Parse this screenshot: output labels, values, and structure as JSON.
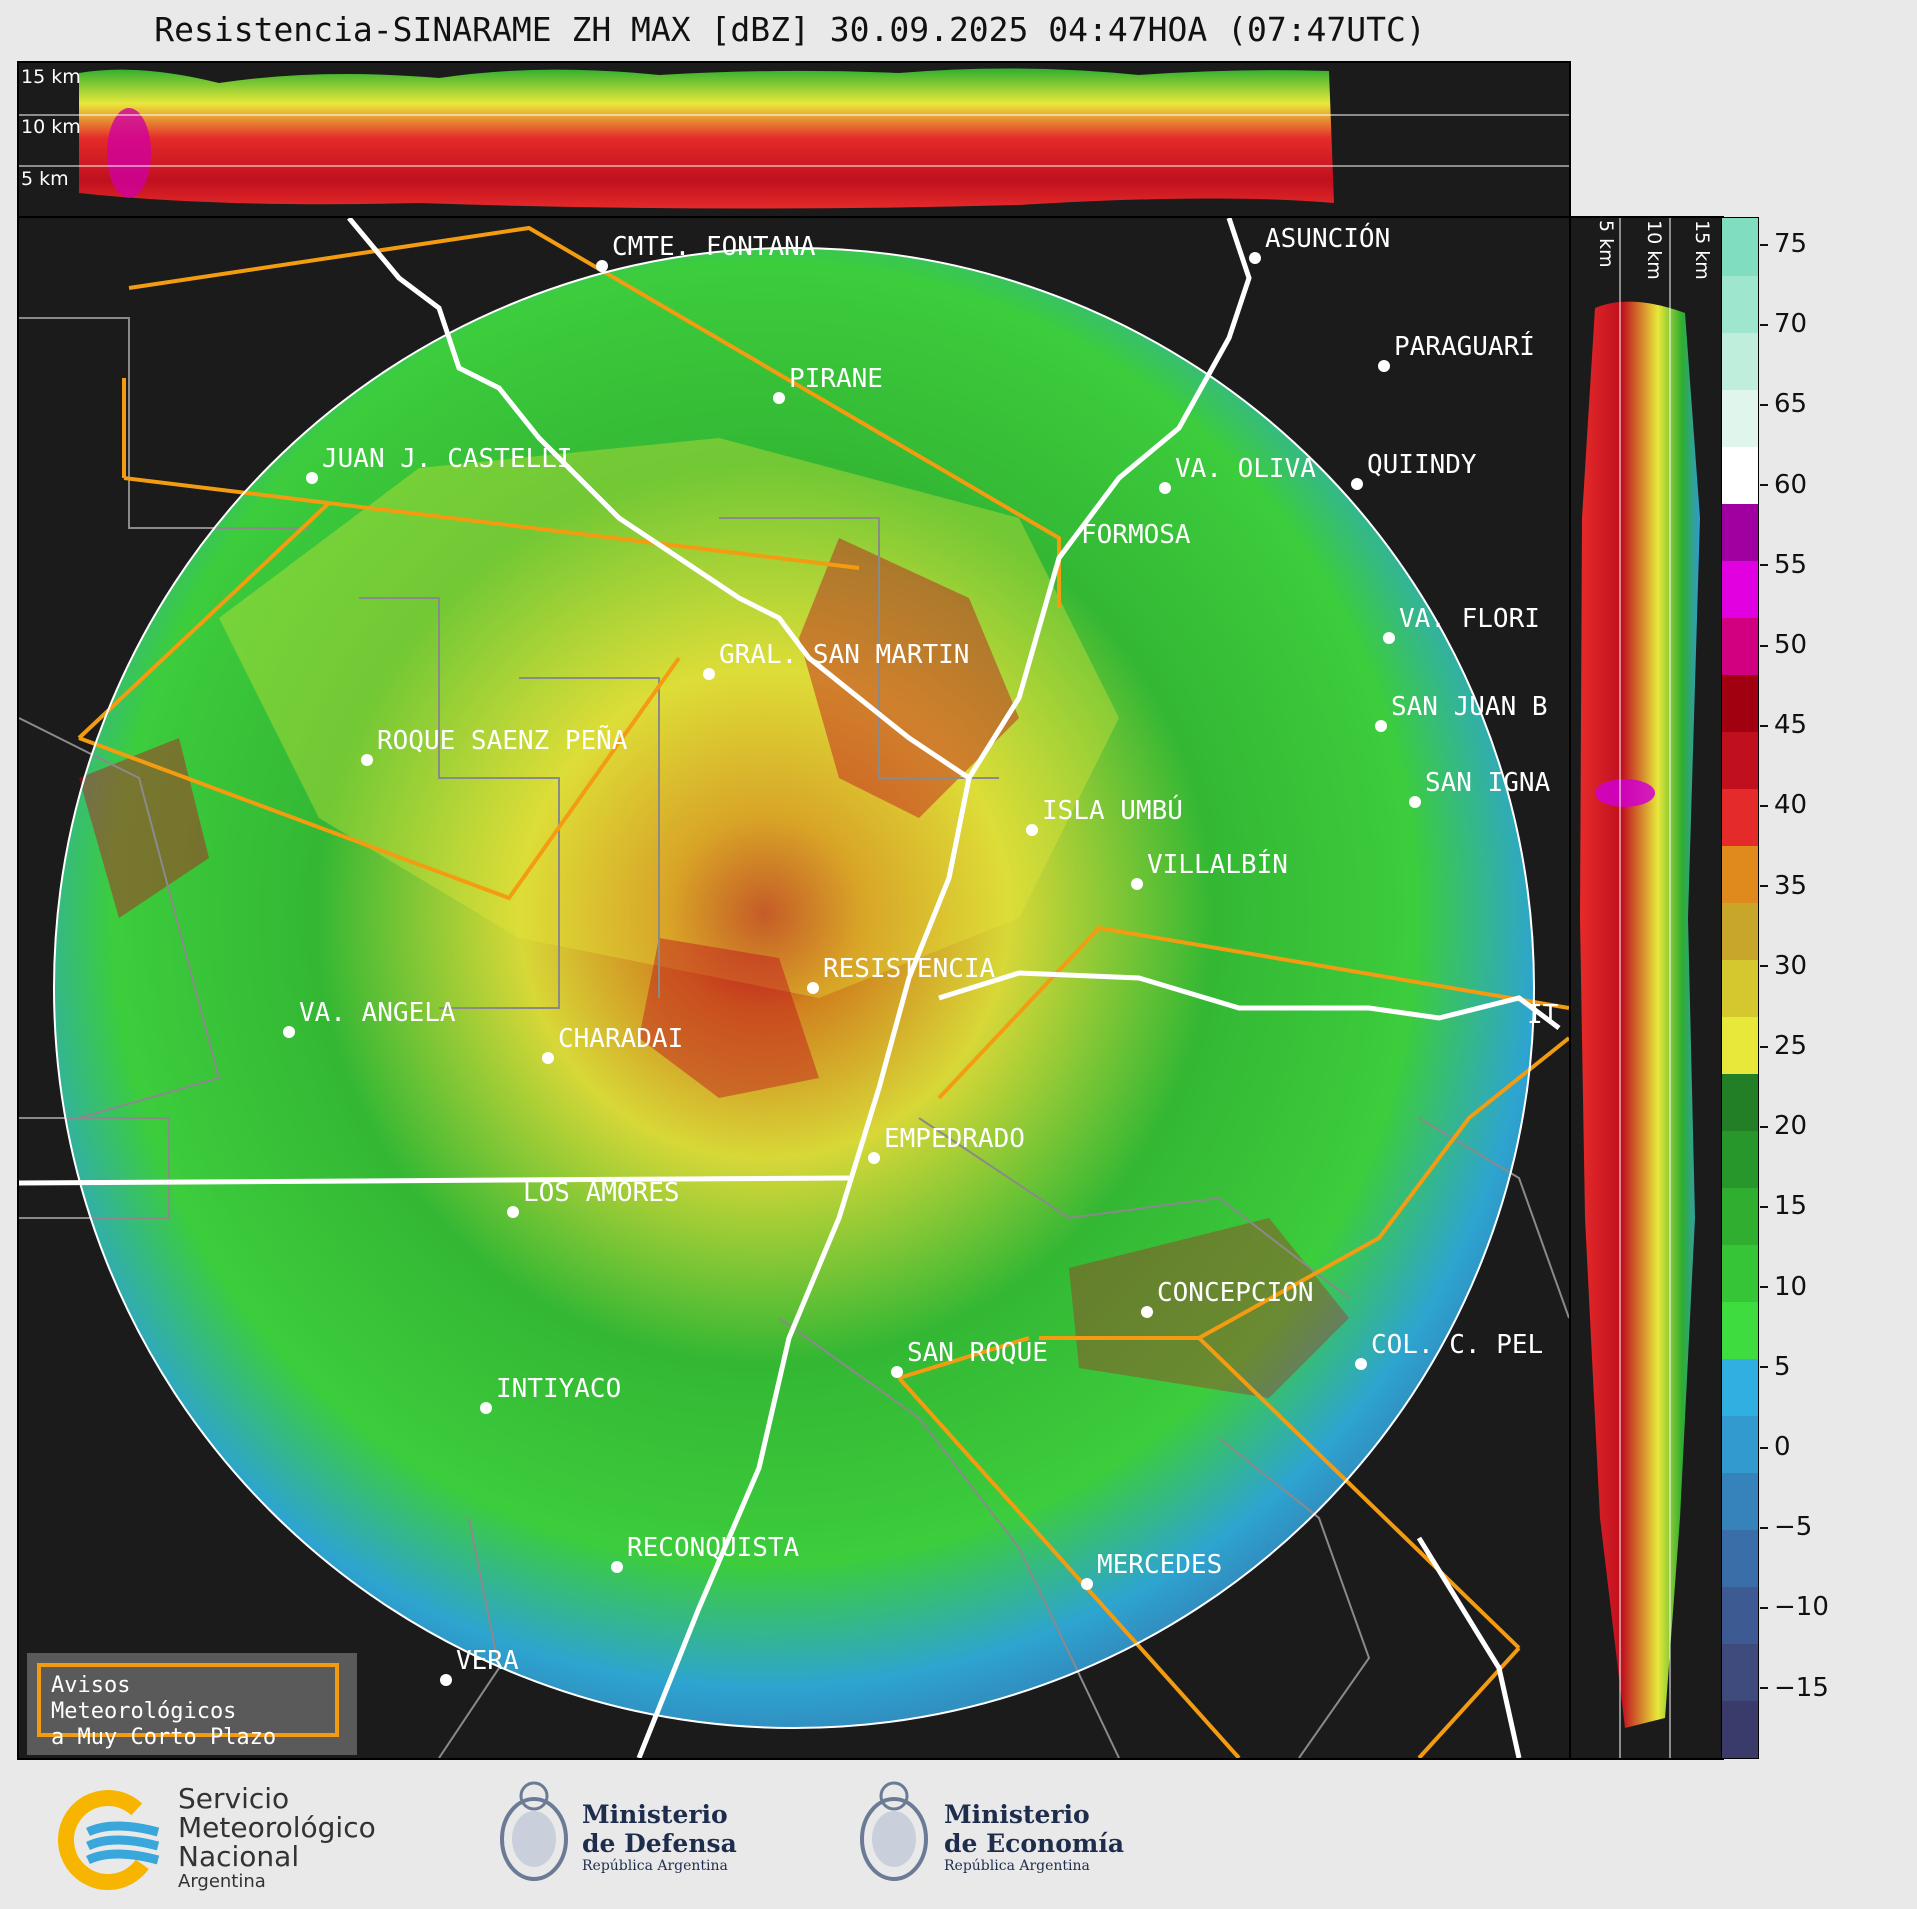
{
  "title": "Resistencia-SINARAME ZH MAX [dBZ] 30.09.2025 04:47HOA (07:47UTC)",
  "top_strip": {
    "labels": [
      "15 km",
      "10 km",
      "5 km"
    ]
  },
  "side_strip": {
    "labels": [
      "5 km",
      "10 km",
      "15 km"
    ]
  },
  "colorbar": {
    "unit": "dBZ",
    "ticks": [
      "75",
      "70",
      "65",
      "60",
      "55",
      "50",
      "45",
      "40",
      "35",
      "30",
      "25",
      "20",
      "15",
      "10",
      "5",
      "0",
      "−5",
      "−10",
      "−15"
    ],
    "colors": [
      "#3b3b6b",
      "#3f4a7d",
      "#3e5a92",
      "#3a6ea8",
      "#3683bc",
      "#329acf",
      "#2fb0e0",
      "#3fdc3f",
      "#36c536",
      "#2fae2f",
      "#28972b",
      "#237f26",
      "#e8e83a",
      "#d4c82e",
      "#c8a62a",
      "#e08a1e",
      "#e52a2a",
      "#c0101e",
      "#a00010",
      "#d00080",
      "#e000e0",
      "#a000a0",
      "#ffffff",
      "#e0f5ec",
      "#bfeedd",
      "#9fe6ce",
      "#80ddbf"
    ]
  },
  "cities": [
    {
      "name": "CMTE. FONTANA"
    },
    {
      "name": "ASUNCIÓN"
    },
    {
      "name": "PARAGUARÍ"
    },
    {
      "name": "PIRANE"
    },
    {
      "name": "JUAN J. CASTELLI"
    },
    {
      "name": "VA. OLIVA"
    },
    {
      "name": "QUIINDY"
    },
    {
      "name": "FORMOSA"
    },
    {
      "name": "VA. FLORI"
    },
    {
      "name": "GRAL. SAN MARTIN"
    },
    {
      "name": "SAN JUAN B"
    },
    {
      "name": "ROQUE SAENZ PEÑA"
    },
    {
      "name": "SAN IGNA"
    },
    {
      "name": "ISLA UMBÚ"
    },
    {
      "name": "VILLALBÍN"
    },
    {
      "name": "RESISTENCIA"
    },
    {
      "name": "VA. ANGELA"
    },
    {
      "name": "CHARADAI"
    },
    {
      "name": "EMPEDRADO"
    },
    {
      "name": "LOS AMORES"
    },
    {
      "name": "CONCEPCION"
    },
    {
      "name": "SAN ROQUE"
    },
    {
      "name": "COL. C. PEL"
    },
    {
      "name": "INTIYACO"
    },
    {
      "name": "RECONQUISTA"
    },
    {
      "name": "MERCEDES"
    },
    {
      "name": "VERA"
    },
    {
      "name": "IT"
    }
  ],
  "avisos": {
    "line1": "Avisos Meteorológicos",
    "line2": "a Muy Corto Plazo"
  },
  "footer": {
    "smn": {
      "line1": "Servicio",
      "line2": "Meteorológico",
      "line3": "Nacional",
      "line4": "Argentina"
    },
    "defensa": {
      "line1": "Ministerio",
      "line2": "de Defensa",
      "line3": "República Argentina"
    },
    "economia": {
      "line1": "Ministerio",
      "line2": "de Economía",
      "line3": "República Argentina"
    }
  }
}
